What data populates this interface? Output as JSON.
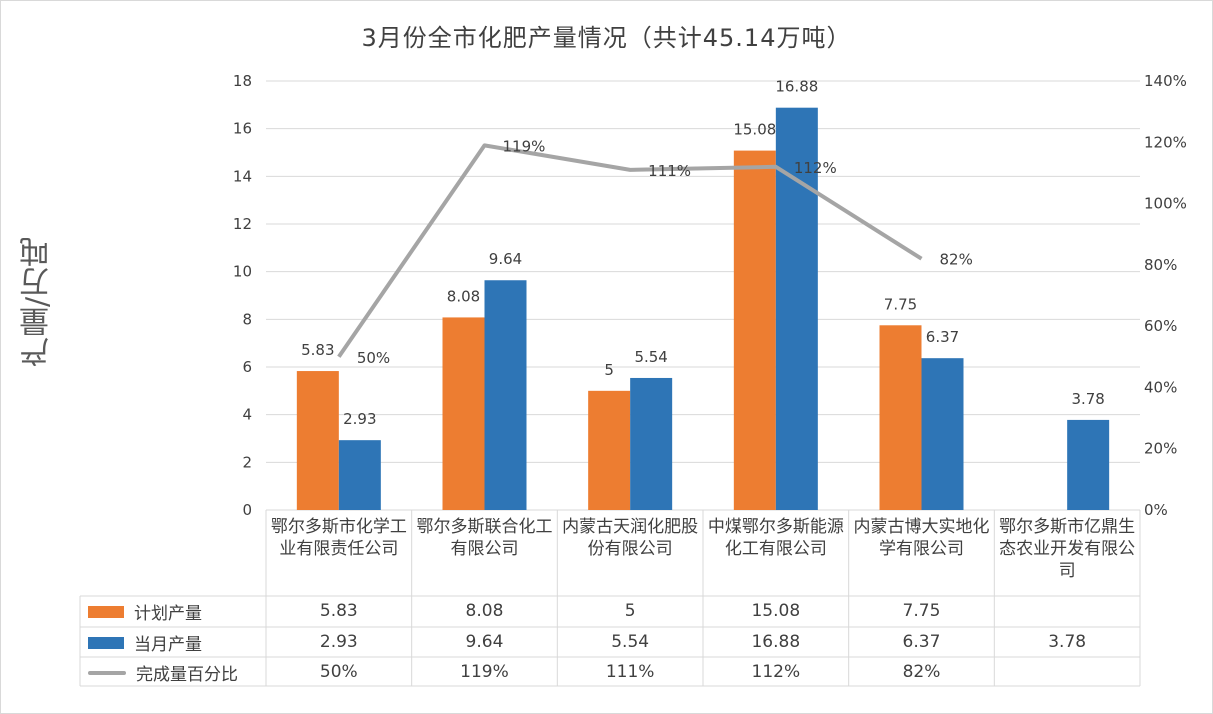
{
  "title": "3月份全市化肥产量情况（共计45.14万吨）",
  "colors": {
    "plan": "#ed7d31",
    "actual": "#2e75b6",
    "percent": "#a5a5a5",
    "grid": "#d9d9d9",
    "text": "#404040"
  },
  "chart_data": {
    "type": "bar",
    "title": "3月份全市化肥产量情况（共计45.14万吨）",
    "ylabel": "产量/万吨",
    "ylim": [
      0,
      18
    ],
    "yticks": [
      "0",
      "2",
      "4",
      "6",
      "8",
      "10",
      "12",
      "14",
      "16",
      "18"
    ],
    "y2lim": [
      0,
      1.4
    ],
    "y2ticks": [
      "0%",
      "20%",
      "40%",
      "60%",
      "80%",
      "100%",
      "120%",
      "140%"
    ],
    "grid": true,
    "legend": "data-table",
    "categories": [
      "鄂尔多斯市化学工业有限责任公司",
      "鄂尔多斯联合化工有限公司",
      "内蒙古天润化肥股份有限公司",
      "中煤鄂尔多斯能源化工有限公司",
      "内蒙古博大实地化学有限公司",
      "鄂尔多斯市亿鼎生态农业开发有限公司"
    ],
    "series": [
      {
        "name": "计划产量",
        "type": "bar",
        "axis": "left",
        "values": [
          5.83,
          8.08,
          5,
          15.08,
          7.75,
          null
        ],
        "labels": [
          "5.83",
          "8.08",
          "5",
          "15.08",
          "7.75",
          ""
        ]
      },
      {
        "name": "当月产量",
        "type": "bar",
        "axis": "left",
        "values": [
          2.93,
          9.64,
          5.54,
          16.88,
          6.37,
          3.78
        ],
        "labels": [
          "2.93",
          "9.64",
          "5.54",
          "16.88",
          "6.37",
          "3.78"
        ]
      },
      {
        "name": "完成量百分比",
        "type": "line",
        "axis": "right",
        "values": [
          0.5,
          1.19,
          1.11,
          1.12,
          0.82,
          null
        ],
        "labels": [
          "50%",
          "119%",
          "111%",
          "112%",
          "82%",
          ""
        ]
      }
    ]
  }
}
